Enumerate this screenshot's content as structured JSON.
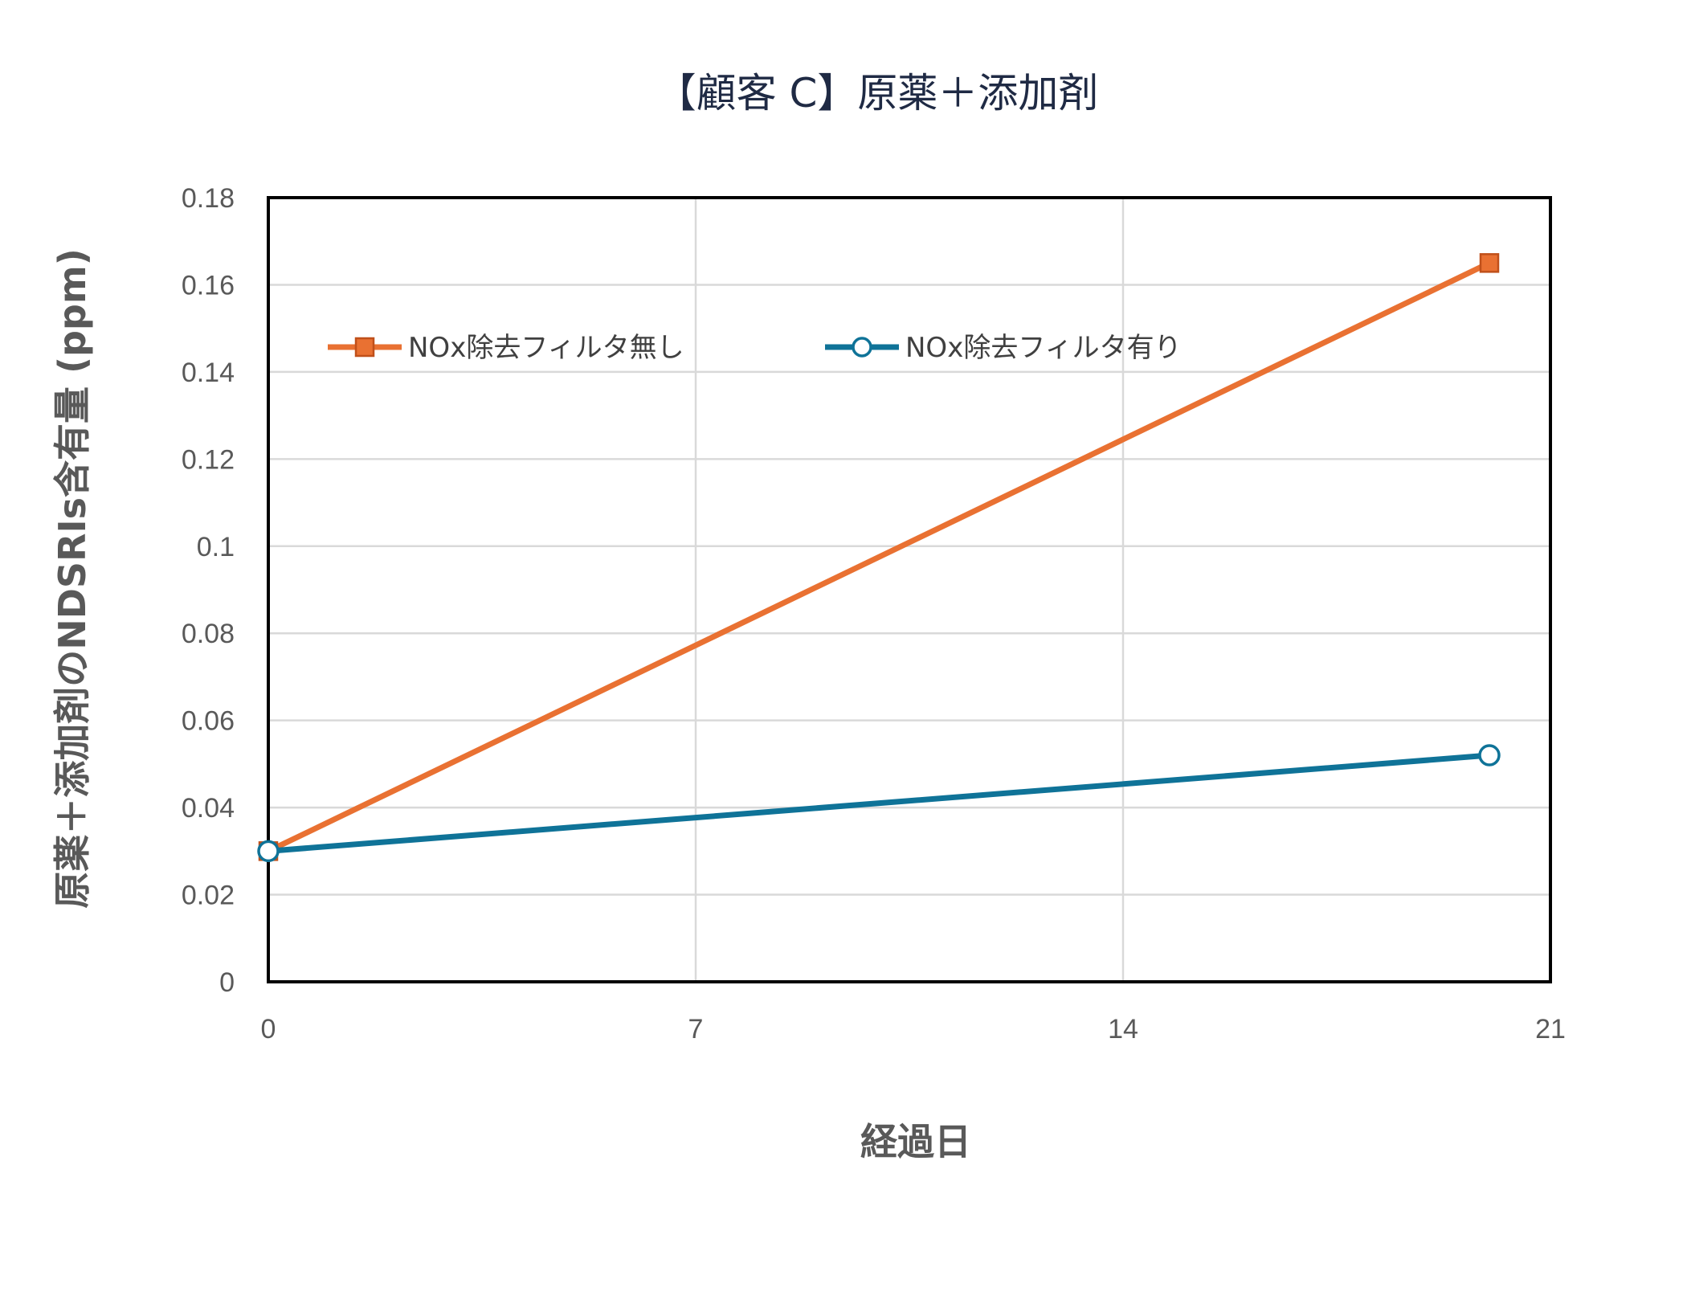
{
  "chart_data": {
    "type": "line",
    "title": "【顧客 C】原薬＋添加剤",
    "xlabel": "経過日",
    "ylabel": "原薬＋添加剤のNDSRIs含有量 (ppm)",
    "xlim": [
      0,
      21
    ],
    "ylim": [
      0,
      0.18
    ],
    "x_ticks": [
      "0",
      "7",
      "14",
      "21"
    ],
    "y_ticks": [
      "0",
      "0.02",
      "0.04",
      "0.06",
      "0.08",
      "0.1",
      "0.12",
      "0.14",
      "0.16",
      "0.18"
    ],
    "grid": true,
    "legend_position": "top",
    "series": [
      {
        "name": "NOx除去フィルタ無し",
        "color": "#e97132",
        "marker": "square",
        "x": [
          0,
          20
        ],
        "y": [
          0.03,
          0.165
        ]
      },
      {
        "name": "NOx除去フィルタ有り",
        "color": "#0f7398",
        "marker": "circle",
        "x": [
          0,
          20
        ],
        "y": [
          0.03,
          0.052
        ]
      }
    ]
  }
}
